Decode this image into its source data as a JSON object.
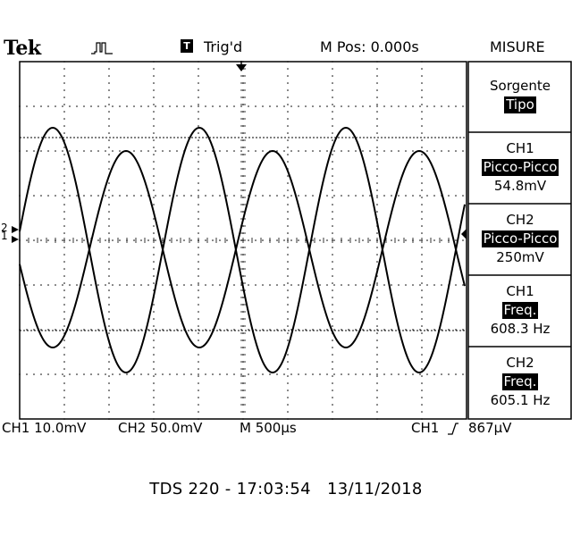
{
  "header": {
    "brand": "Tek",
    "trigger_box": "T",
    "trigger_status": "Trig'd",
    "m_pos": "M Pos: 0.000s",
    "menu_title": "MISURE"
  },
  "menu": [
    {
      "line1": "Sorgente",
      "highlight": "Tipo",
      "value": ""
    },
    {
      "line1": "CH1",
      "highlight": "Picco-Picco",
      "value": "54.8mV"
    },
    {
      "line1": "CH2",
      "highlight": "Picco-Picco",
      "value": "250mV"
    },
    {
      "line1": "CH1",
      "highlight": "Freq.",
      "value": "608.3 Hz"
    },
    {
      "line1": "CH2",
      "highlight": "Freq.",
      "value": "605.1 Hz"
    }
  ],
  "markers": {
    "ch1": "1",
    "ch2": "2"
  },
  "status": {
    "ch1_scale": "CH1 10.0mV",
    "ch2_scale": "CH2 50.0mV",
    "timebase": "M 500µs",
    "trigger_src": "CH1",
    "trigger_slope_icon": "rising-edge-icon",
    "trigger_level": "867µV"
  },
  "footer": {
    "model": "TDS 220",
    "separator": " - ",
    "time": "17:03:54",
    "date": "13/11/2018"
  },
  "colors": {
    "trace": "#000000",
    "background": "#ffffff",
    "grid": "#000000"
  }
}
